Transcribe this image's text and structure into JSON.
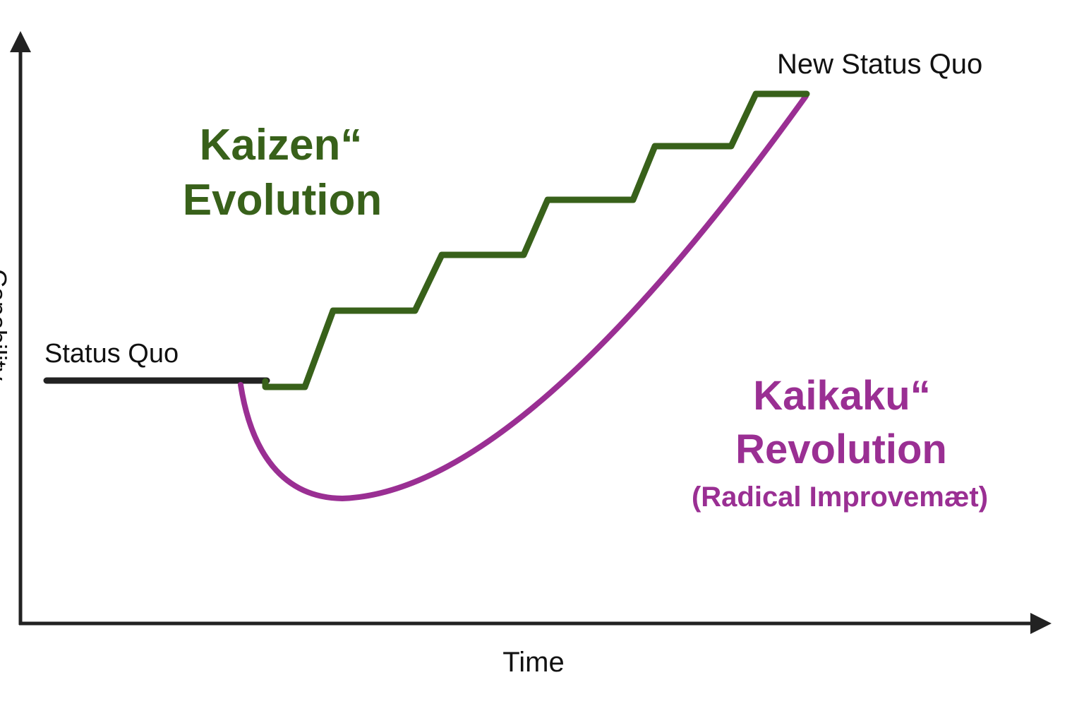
{
  "diagram": {
    "y_axis_label": "Capability",
    "x_axis_label": "Time",
    "status_quo_label": "Status Quo",
    "new_status_quo_label": "New Status Quo",
    "kaizen": {
      "line1": "Kaizen“",
      "line2": "Evolution",
      "color": "#38611a"
    },
    "kaikaku": {
      "line1": "Kaikaku“",
      "line2": "Revolution",
      "line3": "(Radical Improvemæt)",
      "color": "#9a2f93"
    },
    "axis_color": "#222222",
    "status_quo_color": "#222222"
  }
}
